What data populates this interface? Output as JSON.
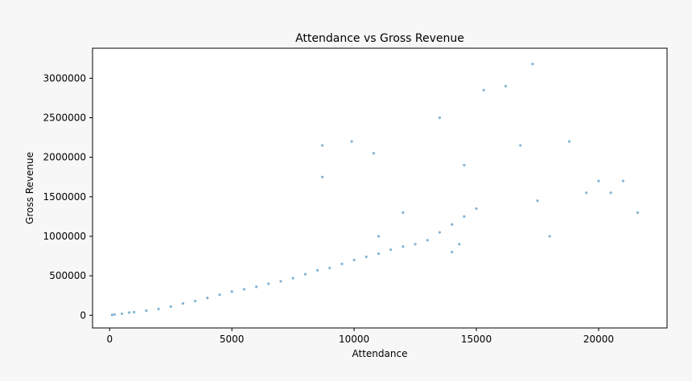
{
  "chart_data": {
    "type": "scatter",
    "title": "Attendance vs Gross Revenue",
    "xlabel": "Attendance",
    "ylabel": "Gross Revenue",
    "xlim": [
      -700,
      22800
    ],
    "ylim": [
      -160000,
      3380000
    ],
    "xticks": [
      0,
      5000,
      10000,
      15000,
      20000
    ],
    "xtick_labels": [
      "0",
      "5000",
      "10000",
      "15000",
      "20000"
    ],
    "yticks": [
      0,
      500000,
      1000000,
      1500000,
      2000000,
      2500000,
      3000000
    ],
    "ytick_labels": [
      "0",
      "500000",
      "1000000",
      "1500000",
      "2000000",
      "2500000",
      "3000000"
    ],
    "grid": false,
    "colors": {
      "points": "#1f77b4",
      "background": "#f7f7f7",
      "plot_area": "#ffffff"
    },
    "series": [
      {
        "points": [
          [
            100,
            5000
          ],
          [
            200,
            10000
          ],
          [
            500,
            20000
          ],
          [
            800,
            35000
          ],
          [
            1000,
            40000
          ],
          [
            1500,
            60000
          ],
          [
            2000,
            80000
          ],
          [
            2500,
            110000
          ],
          [
            3000,
            150000
          ],
          [
            3500,
            180000
          ],
          [
            4000,
            220000
          ],
          [
            4500,
            260000
          ],
          [
            5000,
            300000
          ],
          [
            5500,
            330000
          ],
          [
            6000,
            360000
          ],
          [
            6500,
            400000
          ],
          [
            7000,
            430000
          ],
          [
            7500,
            470000
          ],
          [
            8000,
            520000
          ],
          [
            8500,
            570000
          ],
          [
            9000,
            600000
          ],
          [
            9500,
            650000
          ],
          [
            10000,
            700000
          ],
          [
            10500,
            740000
          ],
          [
            11000,
            780000
          ],
          [
            11500,
            830000
          ],
          [
            12000,
            870000
          ],
          [
            12500,
            900000
          ],
          [
            13000,
            950000
          ],
          [
            13500,
            1050000
          ],
          [
            14000,
            1150000
          ],
          [
            14500,
            1250000
          ],
          [
            15000,
            1350000
          ],
          [
            15300,
            2850000
          ],
          [
            16200,
            2900000
          ],
          [
            16800,
            2150000
          ],
          [
            17300,
            3180000
          ],
          [
            17500,
            1450000
          ],
          [
            18000,
            1000000
          ],
          [
            18800,
            2200000
          ],
          [
            19500,
            1550000
          ],
          [
            20000,
            1700000
          ],
          [
            20500,
            1550000
          ],
          [
            21000,
            1700000
          ],
          [
            21600,
            1300000
          ],
          [
            8700,
            1750000
          ],
          [
            8700,
            2150000
          ],
          [
            9900,
            2200000
          ],
          [
            10800,
            2050000
          ],
          [
            13500,
            2500000
          ],
          [
            14500,
            1900000
          ],
          [
            12000,
            1300000
          ],
          [
            11000,
            1000000
          ],
          [
            14000,
            800000
          ],
          [
            14300,
            900000
          ]
        ]
      }
    ]
  }
}
